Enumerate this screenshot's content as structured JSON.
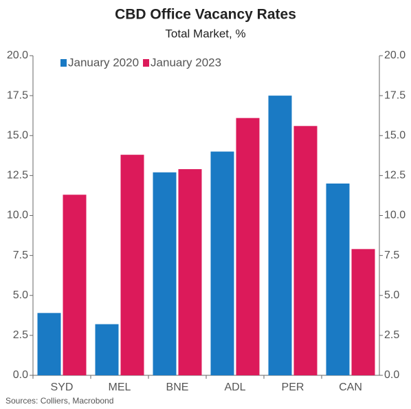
{
  "chart_data": {
    "type": "bar",
    "title": "CBD Office Vacancy Rates",
    "subtitle": "Total Market, %",
    "categories": [
      "SYD",
      "MEL",
      "BNE",
      "ADL",
      "PER",
      "CAN"
    ],
    "series": [
      {
        "name": "January 2020",
        "color": "#1a7ac4",
        "values": [
          3.9,
          3.2,
          12.7,
          14.0,
          17.5,
          12.0
        ]
      },
      {
        "name": "January 2023",
        "color": "#dc1a5a",
        "values": [
          11.3,
          13.8,
          12.9,
          16.1,
          15.6,
          7.9
        ]
      }
    ],
    "ylim": [
      0,
      20
    ],
    "yticks": [
      {
        "value": 0,
        "label": "0.0"
      },
      2.5,
      {
        "value": 5,
        "label": "5.0"
      },
      7.5,
      {
        "value": 10,
        "label": "10.0"
      },
      12.5,
      {
        "value": 15,
        "label": "15.0"
      },
      17.5,
      {
        "value": 20,
        "label": "20.0"
      }
    ],
    "legend": "top-left",
    "source": "Sources: Colliers, Macrobond"
  }
}
